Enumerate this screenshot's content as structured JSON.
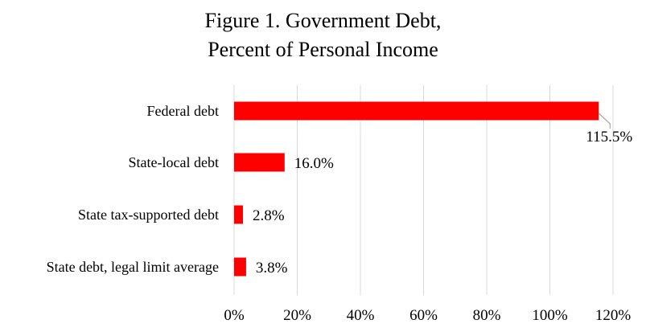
{
  "chart_data": {
    "type": "bar",
    "orientation": "horizontal",
    "title_line1": "Figure 1. Government Debt,",
    "title_line2": "Percent of Personal Income",
    "categories": [
      "Federal debt",
      "State-local debt",
      "State tax-supported debt",
      "State debt, legal limit average"
    ],
    "values": [
      115.5,
      16.0,
      2.8,
      3.8
    ],
    "data_labels": [
      "115.5%",
      "16.0%",
      "2.8%",
      "3.8%"
    ],
    "x_ticks": [
      "0%",
      "20%",
      "40%",
      "60%",
      "80%",
      "100%",
      "120%"
    ],
    "xlim": [
      0,
      120
    ],
    "gridlines": true,
    "bar_color": "#ff0000",
    "grid_color": "#d9d9d9",
    "leader_line_color": "#a6a6a6"
  }
}
